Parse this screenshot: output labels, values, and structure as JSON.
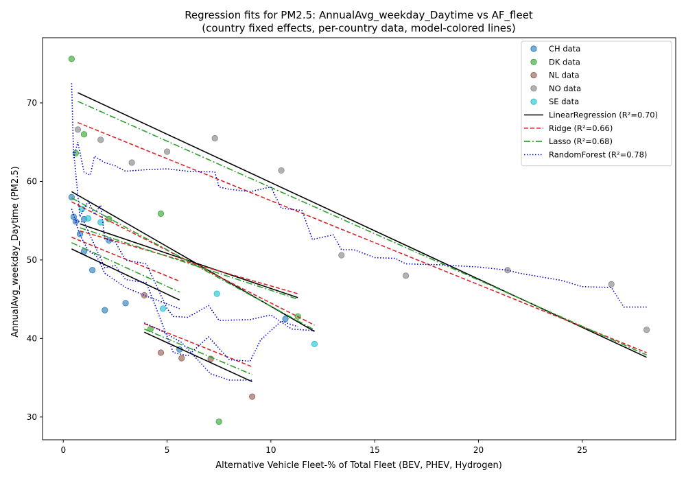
{
  "chart_data": {
    "type": "scatter",
    "title": "Regression fits for PM2.5: AnnualAvg_weekday_Daytime vs AF_fleet",
    "subtitle": "(country fixed effects, per-country data, model-colored lines)",
    "xlabel": "Alternative Vehicle Fleet-% of Total Fleet (BEV, PHEV, Hydrogen)",
    "ylabel": "AnnualAvg_weekday_Daytime (PM2.5)",
    "xlim": [
      -1,
      29.5
    ],
    "ylim": [
      27.1,
      78.3
    ],
    "xticks": [
      0,
      5,
      10,
      15,
      20,
      25
    ],
    "yticks": [
      30,
      40,
      50,
      60,
      70
    ],
    "grid": false,
    "legend_position": "top-right",
    "scatter_series": [
      {
        "name": "CH data",
        "color": "#1f77b4",
        "points": [
          [
            0.4,
            58.0
          ],
          [
            0.5,
            55.5
          ],
          [
            0.6,
            54.9
          ],
          [
            0.8,
            53.3
          ],
          [
            1.0,
            51.1
          ],
          [
            1.4,
            48.7
          ],
          [
            2.0,
            43.6
          ],
          [
            3.0,
            44.5
          ],
          [
            5.6,
            38.6
          ],
          [
            10.7,
            42.5
          ],
          [
            2.2,
            52.5
          ],
          [
            1.0,
            55.2
          ]
        ]
      },
      {
        "name": "DK data",
        "color": "#2ca02c",
        "points": [
          [
            0.4,
            75.6
          ],
          [
            0.6,
            63.6
          ],
          [
            1.0,
            66.0
          ],
          [
            2.2,
            55.2
          ],
          [
            4.7,
            55.9
          ],
          [
            7.5,
            29.4
          ],
          [
            11.3,
            42.8
          ],
          [
            4.2,
            41.2
          ]
        ]
      },
      {
        "name": "NL data",
        "color": "#8c564b",
        "points": [
          [
            3.9,
            45.5
          ],
          [
            4.7,
            38.2
          ],
          [
            5.7,
            37.5
          ],
          [
            9.1,
            32.6
          ],
          [
            7.1,
            37.4
          ]
        ]
      },
      {
        "name": "NO data",
        "color": "#7f7f7f",
        "points": [
          [
            0.7,
            66.6
          ],
          [
            1.8,
            65.3
          ],
          [
            3.3,
            62.4
          ],
          [
            5.0,
            63.8
          ],
          [
            7.3,
            65.5
          ],
          [
            10.5,
            61.4
          ],
          [
            13.4,
            50.6
          ],
          [
            16.5,
            48.0
          ],
          [
            21.4,
            48.7
          ],
          [
            26.4,
            46.9
          ],
          [
            28.1,
            41.1
          ]
        ]
      },
      {
        "name": "SE data",
        "color": "#17becf",
        "points": [
          [
            0.9,
            56.5
          ],
          [
            1.2,
            55.3
          ],
          [
            1.8,
            54.8
          ],
          [
            4.8,
            43.8
          ],
          [
            7.4,
            45.7
          ],
          [
            12.1,
            39.3
          ]
        ]
      }
    ],
    "line_models": [
      {
        "name": "LinearRegression (R²=0.70)",
        "color": "#000000",
        "style": "solid",
        "segments": [
          [
            [
              0.7,
              71.3
            ],
            [
              28.1,
              37.6
            ]
          ],
          [
            [
              0.4,
              58.7
            ],
            [
              12.1,
              40.9
            ]
          ],
          [
            [
              0.8,
              54.6
            ],
            [
              11.3,
              45.2
            ]
          ],
          [
            [
              0.4,
              51.4
            ],
            [
              5.6,
              44.9
            ]
          ],
          [
            [
              3.9,
              40.8
            ],
            [
              9.1,
              34.5
            ]
          ]
        ]
      },
      {
        "name": "Ridge (R²=0.66)",
        "color": "#d62728",
        "style": "dashed",
        "segments": [
          [
            [
              0.7,
              67.5
            ],
            [
              28.1,
              38.2
            ]
          ],
          [
            [
              0.4,
              57.4
            ],
            [
              12.1,
              41.7
            ]
          ],
          [
            [
              0.8,
              53.7
            ],
            [
              11.3,
              45.7
            ]
          ],
          [
            [
              0.4,
              52.9
            ],
            [
              5.6,
              47.3
            ]
          ],
          [
            [
              3.9,
              41.9
            ],
            [
              9.1,
              36.4
            ]
          ]
        ]
      },
      {
        "name": "Lasso (R²=0.68)",
        "color": "#2ca02c",
        "style": "dashdot",
        "segments": [
          [
            [
              0.7,
              70.2
            ],
            [
              28.1,
              37.9
            ]
          ],
          [
            [
              0.4,
              57.9
            ],
            [
              12.1,
              41.1
            ]
          ],
          [
            [
              0.8,
              54.1
            ],
            [
              11.3,
              45.0
            ]
          ],
          [
            [
              0.4,
              52.2
            ],
            [
              5.6,
              45.9
            ]
          ],
          [
            [
              3.9,
              41.2
            ],
            [
              9.1,
              35.4
            ]
          ]
        ]
      },
      {
        "name": "RandomForest (R²=0.78)",
        "color": "#0000cc",
        "style": "dotted",
        "segments": [
          [
            [
              0.4,
              72.5
            ],
            [
              0.5,
              63.0
            ],
            [
              0.7,
              65.0
            ],
            [
              1.0,
              61.2
            ],
            [
              1.3,
              60.8
            ],
            [
              1.5,
              63.2
            ],
            [
              2.0,
              62.4
            ],
            [
              2.5,
              62.0
            ],
            [
              3.0,
              61.3
            ],
            [
              4.0,
              61.5
            ],
            [
              5.0,
              61.6
            ],
            [
              6.0,
              61.3
            ],
            [
              7.3,
              61.2
            ],
            [
              7.5,
              59.3
            ],
            [
              8.0,
              59.0
            ],
            [
              9.0,
              58.7
            ],
            [
              10.0,
              59.3
            ],
            [
              10.5,
              56.6
            ],
            [
              11.5,
              56.3
            ],
            [
              12.0,
              52.6
            ],
            [
              13.0,
              53.2
            ],
            [
              13.4,
              51.3
            ],
            [
              14.0,
              51.3
            ],
            [
              15.0,
              50.3
            ],
            [
              16.0,
              50.2
            ],
            [
              16.5,
              49.5
            ],
            [
              18.0,
              49.4
            ],
            [
              20.0,
              49.1
            ],
            [
              21.4,
              48.7
            ],
            [
              22.0,
              48.3
            ],
            [
              24.0,
              47.4
            ],
            [
              25.0,
              46.6
            ],
            [
              26.4,
              46.5
            ],
            [
              27.0,
              44.0
            ],
            [
              28.1,
              44.0
            ]
          ],
          [
            [
              0.5,
              63.8
            ],
            [
              0.8,
              55.5
            ],
            [
              1.2,
              57.5
            ],
            [
              1.5,
              55.8
            ],
            [
              1.8,
              57.0
            ],
            [
              2.0,
              52.7
            ],
            [
              2.5,
              52.3
            ],
            [
              3.0,
              50.0
            ],
            [
              4.0,
              49.5
            ],
            [
              5.0,
              43.8
            ],
            [
              5.3,
              42.8
            ],
            [
              6.0,
              42.7
            ],
            [
              7.0,
              44.2
            ],
            [
              7.5,
              42.3
            ],
            [
              9.0,
              42.4
            ],
            [
              10.0,
              43.0
            ],
            [
              11.0,
              41.2
            ],
            [
              12.1,
              41.0
            ]
          ],
          [
            [
              0.6,
              55.0
            ],
            [
              1.0,
              54.8
            ],
            [
              1.5,
              51.9
            ],
            [
              2.0,
              49.0
            ],
            [
              2.5,
              49.3
            ],
            [
              3.0,
              47.5
            ],
            [
              4.0,
              47.1
            ],
            [
              5.3,
              38.2
            ],
            [
              6.0,
              37.8
            ],
            [
              7.0,
              40.2
            ],
            [
              8.0,
              37.3
            ],
            [
              9.0,
              37.1
            ],
            [
              9.5,
              39.8
            ],
            [
              10.5,
              42.2
            ],
            [
              11.3,
              41.5
            ]
          ],
          [
            [
              0.4,
              56.5
            ],
            [
              0.8,
              53.2
            ],
            [
              1.2,
              51.2
            ],
            [
              1.6,
              50.5
            ],
            [
              2.0,
              48.3
            ],
            [
              3.0,
              46.5
            ],
            [
              4.0,
              45.4
            ],
            [
              5.6,
              43.8
            ]
          ],
          [
            [
              3.9,
              42.0
            ],
            [
              4.7,
              41.0
            ],
            [
              5.7,
              39.5
            ],
            [
              7.1,
              35.5
            ],
            [
              8.0,
              34.7
            ],
            [
              9.1,
              34.7
            ]
          ]
        ]
      }
    ]
  }
}
